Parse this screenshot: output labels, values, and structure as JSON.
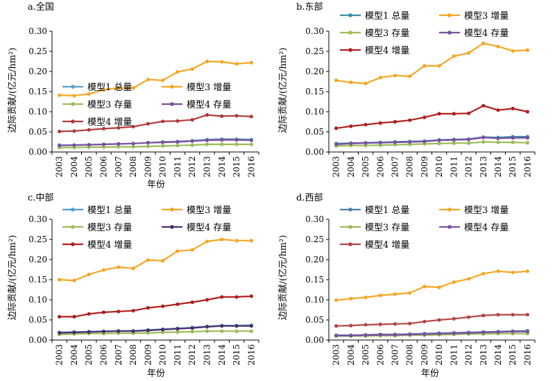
{
  "chart_data": [
    {
      "type": "line",
      "title": "a.全国",
      "xlabel": "年份",
      "ylabel": "边际贡献/(亿元/hm²)",
      "ylim": [
        0,
        0.3
      ],
      "yticks": [
        "0.00",
        "0.05",
        "0.10",
        "0.15",
        "0.20",
        "0.25",
        "0.30"
      ],
      "categories": [
        "2003",
        "2004",
        "2005",
        "2006",
        "2007",
        "2008",
        "2009",
        "2010",
        "2011",
        "2012",
        "2013",
        "2014",
        "2015",
        "2016"
      ],
      "legend": "top",
      "series": [
        {
          "name": "模型1 总量",
          "color": "#5aa3c8",
          "values": [
            0.017,
            0.017,
            0.018,
            0.019,
            0.02,
            0.021,
            0.023,
            0.025,
            0.026,
            0.028,
            0.031,
            0.032,
            0.032,
            0.031
          ]
        },
        {
          "name": "模型3 增量",
          "color": "#f5a623",
          "values": [
            0.141,
            0.14,
            0.144,
            0.155,
            0.159,
            0.159,
            0.18,
            0.178,
            0.199,
            0.206,
            0.225,
            0.224,
            0.219,
            0.222
          ]
        },
        {
          "name": "模型3 存量",
          "color": "#9bbb59",
          "values": [
            0.011,
            0.011,
            0.012,
            0.012,
            0.013,
            0.013,
            0.014,
            0.015,
            0.016,
            0.017,
            0.019,
            0.019,
            0.019,
            0.019
          ]
        },
        {
          "name": "模型4 存量",
          "color": "#7b4f9d",
          "values": [
            0.016,
            0.017,
            0.018,
            0.019,
            0.02,
            0.021,
            0.023,
            0.024,
            0.025,
            0.027,
            0.029,
            0.03,
            0.03,
            0.029
          ]
        },
        {
          "name": "模型4 增量",
          "color": "#b03a3a",
          "values": [
            0.051,
            0.052,
            0.055,
            0.058,
            0.06,
            0.063,
            0.07,
            0.076,
            0.077,
            0.08,
            0.092,
            0.089,
            0.09,
            0.088
          ]
        }
      ]
    },
    {
      "type": "line",
      "title": "b.东部",
      "xlabel": "",
      "ylabel": "边际贡献/(亿元/hm²)",
      "ylim": [
        0,
        0.3
      ],
      "yticks": [
        "0.00",
        "0.05",
        "0.10",
        "0.15",
        "0.20",
        "0.25",
        "0.30"
      ],
      "categories": [
        "2003",
        "2004",
        "2005",
        "2006",
        "2007",
        "2008",
        "2009",
        "2010",
        "2011",
        "2012",
        "2013",
        "2014",
        "2015",
        "2016"
      ],
      "legend": "top",
      "series": [
        {
          "name": "模型1 总量",
          "color": "#3a8ea8",
          "values": [
            0.021,
            0.022,
            0.023,
            0.024,
            0.025,
            0.026,
            0.027,
            0.03,
            0.031,
            0.032,
            0.037,
            0.036,
            0.038,
            0.038
          ]
        },
        {
          "name": "模型3 增量",
          "color": "#f5a623",
          "values": [
            0.178,
            0.173,
            0.17,
            0.185,
            0.19,
            0.188,
            0.214,
            0.214,
            0.238,
            0.246,
            0.27,
            0.262,
            0.251,
            0.253
          ]
        },
        {
          "name": "模型3 存量",
          "color": "#9bbb59",
          "values": [
            0.015,
            0.016,
            0.016,
            0.017,
            0.018,
            0.019,
            0.02,
            0.021,
            0.022,
            0.022,
            0.025,
            0.024,
            0.024,
            0.023
          ]
        },
        {
          "name": "模型4 存量",
          "color": "#7b4f9d",
          "values": [
            0.019,
            0.021,
            0.022,
            0.023,
            0.024,
            0.025,
            0.026,
            0.029,
            0.03,
            0.031,
            0.036,
            0.034,
            0.035,
            0.035
          ]
        },
        {
          "name": "模型4 增量",
          "color": "#b01e1e",
          "values": [
            0.059,
            0.064,
            0.068,
            0.072,
            0.075,
            0.079,
            0.086,
            0.095,
            0.095,
            0.096,
            0.115,
            0.104,
            0.108,
            0.1
          ]
        }
      ]
    },
    {
      "type": "line",
      "title": "c.中部",
      "xlabel": "年份",
      "ylabel": "边际贡献/(亿元/hm²)",
      "ylim": [
        0,
        0.3
      ],
      "yticks": [
        "0.00",
        "0.05",
        "0.10",
        "0.15",
        "0.20",
        "0.25",
        "0.30"
      ],
      "categories": [
        "2003",
        "2004",
        "2005",
        "2006",
        "2007",
        "2008",
        "2009",
        "2010",
        "2011",
        "2012",
        "2013",
        "2014",
        "2015",
        "2016"
      ],
      "legend": "top",
      "series": [
        {
          "name": "模型1 总量",
          "color": "#4f9fd8",
          "values": [
            0.019,
            0.02,
            0.021,
            0.022,
            0.023,
            0.023,
            0.025,
            0.027,
            0.029,
            0.031,
            0.034,
            0.036,
            0.036,
            0.037
          ]
        },
        {
          "name": "模型3 增量",
          "color": "#f5a623",
          "values": [
            0.15,
            0.148,
            0.163,
            0.174,
            0.181,
            0.178,
            0.199,
            0.197,
            0.221,
            0.224,
            0.245,
            0.25,
            0.247,
            0.247
          ]
        },
        {
          "name": "模型3 存量",
          "color": "#9bbb59",
          "values": [
            0.014,
            0.015,
            0.016,
            0.016,
            0.017,
            0.017,
            0.018,
            0.019,
            0.02,
            0.021,
            0.022,
            0.022,
            0.022,
            0.022
          ]
        },
        {
          "name": "模型4 存量",
          "color": "#4a2f6b",
          "values": [
            0.018,
            0.019,
            0.02,
            0.021,
            0.022,
            0.022,
            0.024,
            0.026,
            0.028,
            0.03,
            0.033,
            0.035,
            0.035,
            0.035
          ]
        },
        {
          "name": "模型4 增量",
          "color": "#b01e1e",
          "values": [
            0.058,
            0.058,
            0.065,
            0.069,
            0.071,
            0.073,
            0.08,
            0.084,
            0.089,
            0.094,
            0.1,
            0.107,
            0.107,
            0.109
          ]
        }
      ]
    },
    {
      "type": "line",
      "title": "d.西部",
      "xlabel": "年份",
      "ylabel": "边际贡献/(亿元/hm²)",
      "ylim": [
        0,
        0.3
      ],
      "yticks": [
        "0.00",
        "0.05",
        "0.10",
        "0.15",
        "0.20",
        "0.25",
        "0.30"
      ],
      "categories": [
        "2003",
        "2004",
        "2005",
        "2006",
        "2007",
        "2008",
        "2009",
        "2010",
        "2011",
        "2012",
        "2013",
        "2014",
        "2015",
        "2016"
      ],
      "legend": "top",
      "series": [
        {
          "name": "模型1 总量",
          "color": "#4a7fa8",
          "values": [
            0.012,
            0.012,
            0.013,
            0.014,
            0.014,
            0.015,
            0.016,
            0.017,
            0.018,
            0.019,
            0.02,
            0.021,
            0.022,
            0.023
          ]
        },
        {
          "name": "模型3 增量",
          "color": "#f5a623",
          "values": [
            0.099,
            0.103,
            0.106,
            0.111,
            0.114,
            0.117,
            0.133,
            0.131,
            0.144,
            0.152,
            0.165,
            0.171,
            0.168,
            0.171
          ]
        },
        {
          "name": "模型3 存量",
          "color": "#9bbb59",
          "values": [
            0.01,
            0.01,
            0.01,
            0.011,
            0.011,
            0.012,
            0.012,
            0.013,
            0.014,
            0.015,
            0.015,
            0.016,
            0.016,
            0.016
          ]
        },
        {
          "name": "模型4 存量",
          "color": "#7b4f9d",
          "values": [
            0.011,
            0.011,
            0.012,
            0.013,
            0.013,
            0.014,
            0.015,
            0.016,
            0.017,
            0.018,
            0.019,
            0.02,
            0.021,
            0.021
          ]
        },
        {
          "name": "模型4 增量",
          "color": "#b04545",
          "values": [
            0.035,
            0.036,
            0.038,
            0.039,
            0.04,
            0.041,
            0.046,
            0.05,
            0.053,
            0.057,
            0.061,
            0.063,
            0.063,
            0.063
          ]
        }
      ]
    }
  ]
}
